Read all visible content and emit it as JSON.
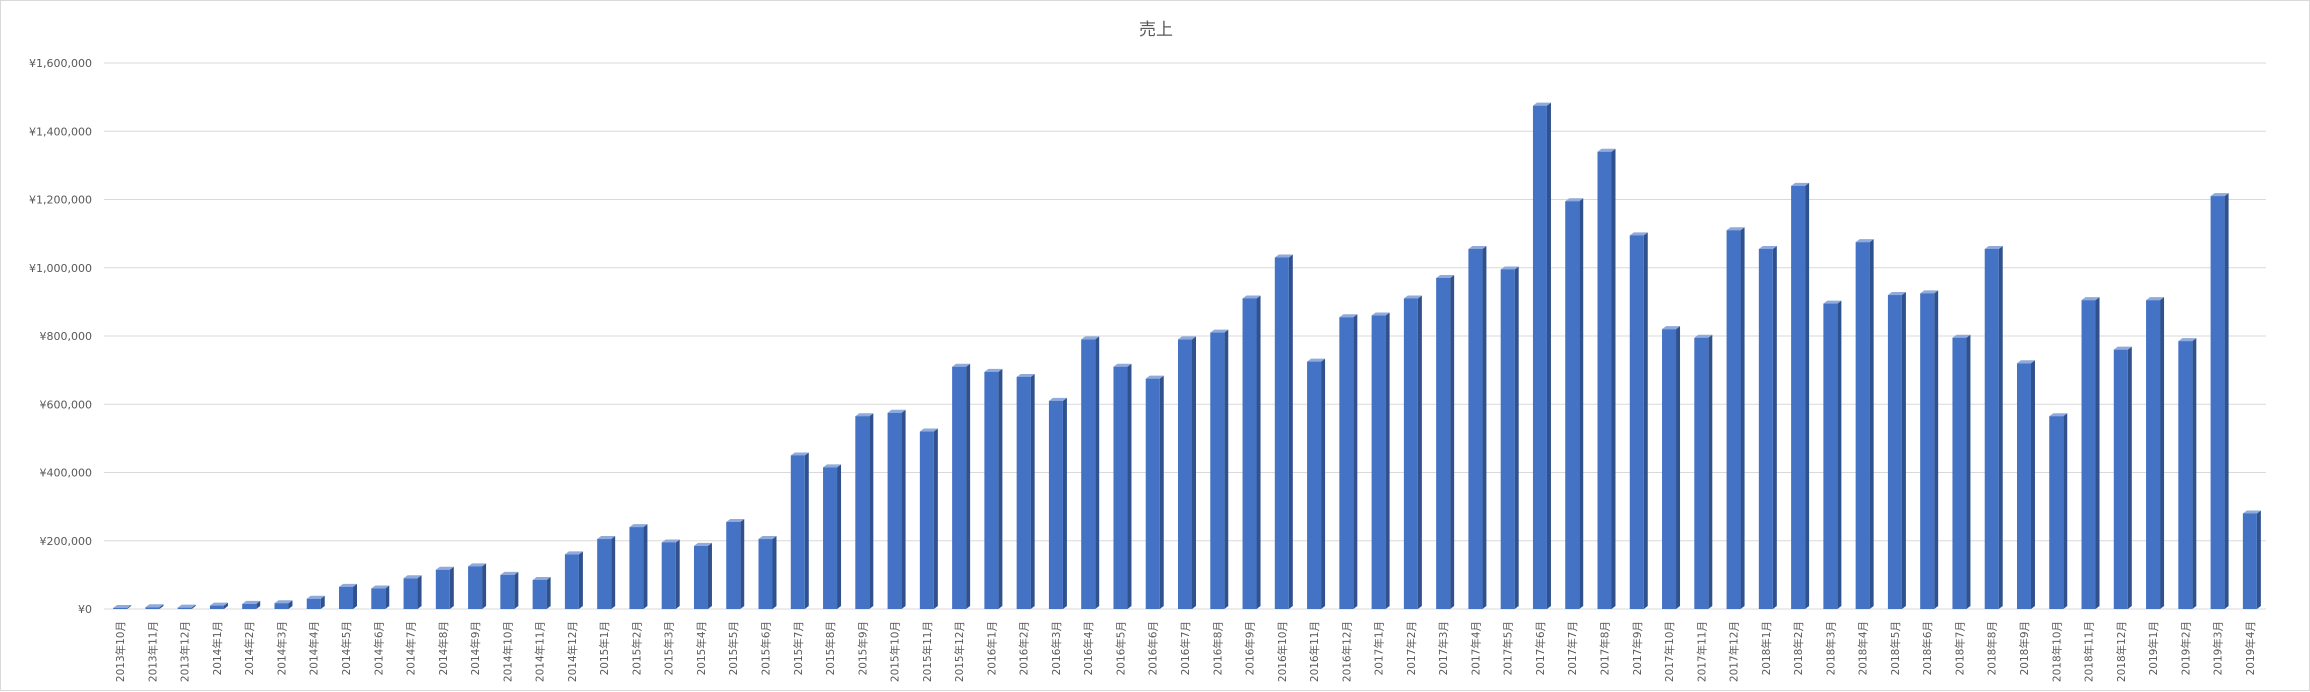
{
  "chart_data": {
    "type": "bar",
    "title": "売上",
    "xlabel": "",
    "ylabel": "",
    "ylim": [
      0,
      1600000
    ],
    "yticks": [
      "¥0",
      "¥200,000",
      "¥400,000",
      "¥600,000",
      "¥800,000",
      "¥1,000,000",
      "¥1,200,000",
      "¥1,400,000",
      "¥1,600,000"
    ],
    "grid": true,
    "legend": "none",
    "style": "3d-column",
    "colors": {
      "bar_front": "#4472c4",
      "bar_side": "#2f528f",
      "bar_top": "#8faadc",
      "grid": "#d9d9d9",
      "text": "#595959"
    },
    "categories": [
      "2013年10月",
      "2013年11月",
      "2013年12月",
      "2014年1月",
      "2014年2月",
      "2014年3月",
      "2014年4月",
      "2014年5月",
      "2014年6月",
      "2014年7月",
      "2014年8月",
      "2014年9月",
      "2014年10月",
      "2014年11月",
      "2014年12月",
      "2015年1月",
      "2015年2月",
      "2015年3月",
      "2015年4月",
      "2015年5月",
      "2015年6月",
      "2015年7月",
      "2015年8月",
      "2015年9月",
      "2015年10月",
      "2015年11月",
      "2015年12月",
      "2016年1月",
      "2016年2月",
      "2016年3月",
      "2016年4月",
      "2016年5月",
      "2016年6月",
      "2016年7月",
      "2016年8月",
      "2016年9月",
      "2016年10月",
      "2016年11月",
      "2016年12月",
      "2017年1月",
      "2017年2月",
      "2017年3月",
      "2017年4月",
      "2017年5月",
      "2017年6月",
      "2017年7月",
      "2017年8月",
      "2017年9月",
      "2017年10月",
      "2017年11月",
      "2017年12月",
      "2018年1月",
      "2018年2月",
      "2018年3月",
      "2018年4月",
      "2018年5月",
      "2018年6月",
      "2018年7月",
      "2018年8月",
      "2018年9月",
      "2018年10月",
      "2018年11月",
      "2018年12月",
      "2019年1月",
      "2019年2月",
      "2019年3月",
      "2019年4月"
    ],
    "values": [
      3000,
      5000,
      4000,
      10000,
      15000,
      17000,
      30000,
      65000,
      60000,
      90000,
      115000,
      125000,
      100000,
      85000,
      160000,
      205000,
      240000,
      195000,
      185000,
      255000,
      205000,
      450000,
      415000,
      565000,
      575000,
      520000,
      710000,
      695000,
      680000,
      610000,
      790000,
      710000,
      675000,
      790000,
      810000,
      910000,
      1030000,
      725000,
      855000,
      860000,
      910000,
      970000,
      1055000,
      995000,
      1475000,
      1195000,
      1340000,
      1095000,
      820000,
      795000,
      1110000,
      1055000,
      1240000,
      895000,
      1075000,
      920000,
      925000,
      795000,
      1055000,
      720000,
      565000,
      905000,
      760000,
      905000,
      785000,
      1210000,
      280000
    ]
  }
}
